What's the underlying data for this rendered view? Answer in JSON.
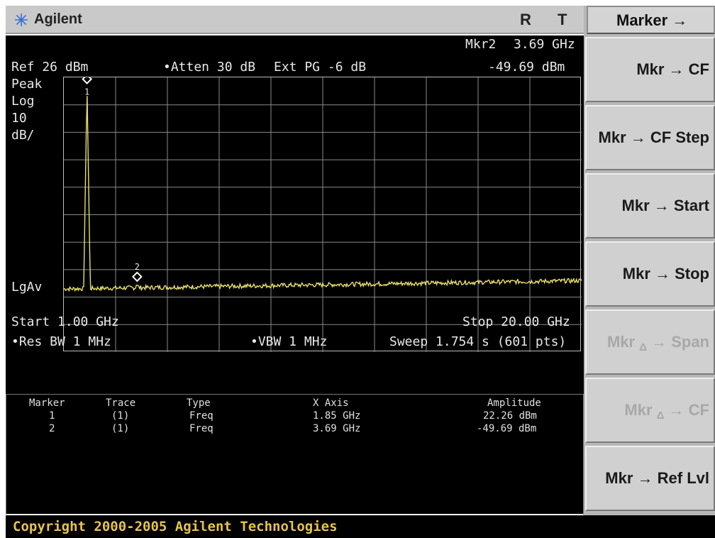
{
  "titlebar": {
    "brand": "Agilent",
    "indicator_r": "R",
    "indicator_t": "T"
  },
  "annotations": {
    "marker_readout_label": "Mkr2",
    "marker_readout_freq": "3.69 GHz",
    "marker_readout_amp": "-49.69 dBm",
    "ref_level": "Ref 26 dBm",
    "atten": "•Atten 30 dB",
    "ext_pg": "Ext PG -6 dB",
    "detector": "Peak",
    "scale_type": "Log",
    "scale_value": "10",
    "scale_unit": "dB/",
    "average_type": "LgAv",
    "start_freq": "Start 1.00 GHz",
    "stop_freq": "Stop 20.00 GHz",
    "res_bw": "•Res BW 1 MHz",
    "vbw": "•VBW 1 MHz",
    "sweep": "Sweep 1.754 s (601 pts)"
  },
  "chart_data": {
    "type": "line",
    "x_range_ghz": [
      1.0,
      20.0
    ],
    "y_range_dbm": [
      -74,
      26
    ],
    "x_divisions": 10,
    "y_divisions": 10,
    "trace_color": "#e8e06a",
    "noise_floor_start_dbm": -51,
    "noise_floor_end_dbm": -48,
    "markers": [
      {
        "label": "1",
        "freq_ghz": 1.85,
        "amp_dbm": 22.26
      },
      {
        "label": "2",
        "freq_ghz": 3.69,
        "amp_dbm": -49.69
      }
    ]
  },
  "marker_table": {
    "headers": [
      "Marker",
      "Trace",
      "Type",
      "X Axis",
      "Amplitude"
    ],
    "rows": [
      [
        "1",
        "(1)",
        "Freq",
        "1.85 GHz",
        "22.26 dBm"
      ],
      [
        "2",
        "(1)",
        "Freq",
        "3.69 GHz",
        "-49.69 dBm"
      ]
    ]
  },
  "softkeys": {
    "menu_title": "Marker →",
    "keys": [
      {
        "label": "Mkr → CF",
        "enabled": true
      },
      {
        "label": "Mkr → CF Step",
        "enabled": true
      },
      {
        "label": "Mkr → Start",
        "enabled": true
      },
      {
        "label": "Mkr → Stop",
        "enabled": true
      },
      {
        "label_main": "Mkr",
        "label_sub": "Δ",
        "label_tail": "→ Span",
        "enabled": false
      },
      {
        "label_main": "Mkr",
        "label_sub": "Δ",
        "label_tail": "→ CF",
        "enabled": false
      },
      {
        "label": "Mkr → Ref Lvl",
        "enabled": true
      }
    ]
  },
  "footer": {
    "copyright": "Copyright 2000-2005 Agilent Technologies"
  }
}
